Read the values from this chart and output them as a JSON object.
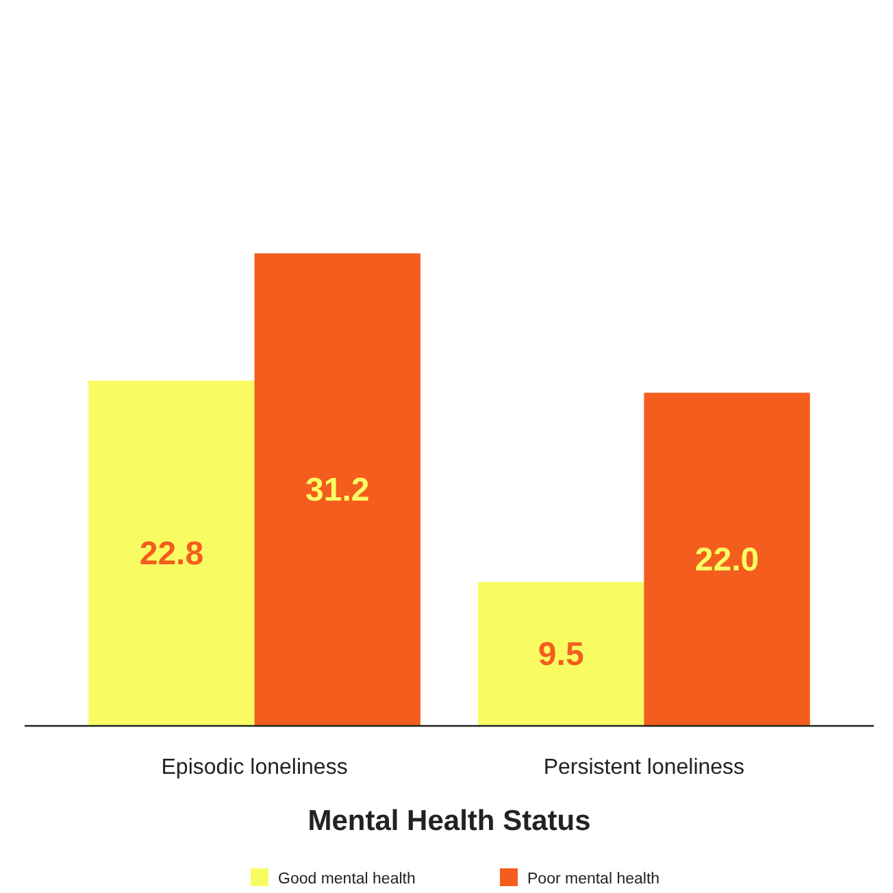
{
  "chart_data": {
    "type": "bar",
    "xlabel": "Mental Health Status",
    "categories": [
      "Episodic loneliness",
      "Persistent loneliness"
    ],
    "series": [
      {
        "name": "Good mental health",
        "color": "#f8fc62",
        "values": [
          22.8,
          9.5
        ],
        "value_labels": [
          "22.8",
          "9.5"
        ]
      },
      {
        "name": "Poor mental health",
        "color": "#f45d1e",
        "values": [
          31.2,
          22.0
        ],
        "value_labels": [
          "31.2",
          "22.0"
        ]
      }
    ],
    "legend": "bottom"
  }
}
